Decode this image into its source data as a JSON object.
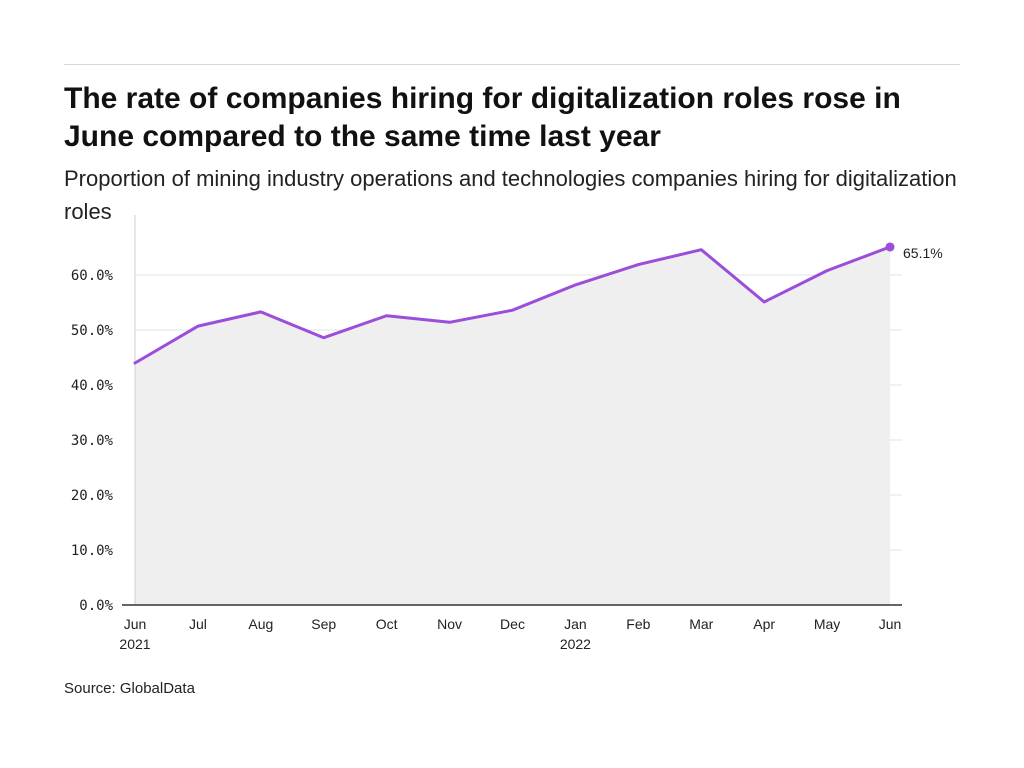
{
  "title": "The rate of companies hiring for digitalization roles rose in June compared to the same time last year",
  "subtitle": "Proportion of mining industry operations and technologies companies hiring for digitalization roles",
  "source": "Source: GlobalData",
  "colors": {
    "line": "#9b4ddb",
    "area": "#efefef",
    "grid": "#e3e3e3",
    "axis": "#333333"
  },
  "chart_data": {
    "type": "area",
    "title": "The rate of companies hiring for digitalization roles rose in June compared to the same time last year",
    "subtitle": "Proportion of mining industry operations and technologies companies hiring for digitalization roles",
    "x": [
      "Jun",
      "Jul",
      "Aug",
      "Sep",
      "Oct",
      "Nov",
      "Dec",
      "Jan",
      "Feb",
      "Mar",
      "Apr",
      "May",
      "Jun"
    ],
    "x_year_labels": [
      "2021",
      "",
      "",
      "",
      "",
      "",
      "",
      "2022",
      "",
      "",
      "",
      "",
      ""
    ],
    "series": [
      {
        "values": [
          44.0,
          50.7,
          53.3,
          48.6,
          52.6,
          51.4,
          53.6,
          58.2,
          61.9,
          64.6,
          55.1,
          60.8,
          65.1
        ]
      }
    ],
    "yticks": [
      "0.0%",
      "10.0%",
      "20.0%",
      "30.0%",
      "40.0%",
      "50.0%",
      "60.0%"
    ],
    "ylim": [
      0,
      70
    ],
    "end_label": "65.1%",
    "grid": true,
    "xlabel": "",
    "ylabel": ""
  }
}
